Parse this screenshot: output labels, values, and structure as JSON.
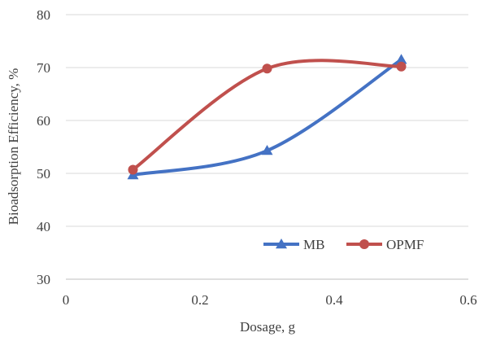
{
  "chart_data": {
    "type": "line",
    "smooth": true,
    "title": "",
    "xlabel": "Dosage, g",
    "ylabel": "Bioadsorption Efficiency, %",
    "xlim": [
      0,
      0.6
    ],
    "ylim": [
      30,
      80
    ],
    "x_ticks": [
      0,
      0.2,
      0.4,
      0.6
    ],
    "x_tick_labels": [
      "0",
      "0.2",
      "0.4",
      "0.6"
    ],
    "y_ticks": [
      30,
      40,
      50,
      60,
      70,
      80
    ],
    "y_tick_labels": [
      "30",
      "40",
      "50",
      "60",
      "70",
      "80"
    ],
    "grid": "horizontal",
    "legend_position": "bottom-right",
    "series": [
      {
        "name": "MB",
        "color": "#4472c4",
        "marker": "triangle",
        "x": [
          0.1,
          0.3,
          0.5
        ],
        "y": [
          49.7,
          54.3,
          71.5
        ]
      },
      {
        "name": "OPMF",
        "color": "#c0504d",
        "marker": "circle",
        "x": [
          0.1,
          0.3,
          0.5
        ],
        "y": [
          50.7,
          69.8,
          70.2
        ]
      }
    ]
  }
}
